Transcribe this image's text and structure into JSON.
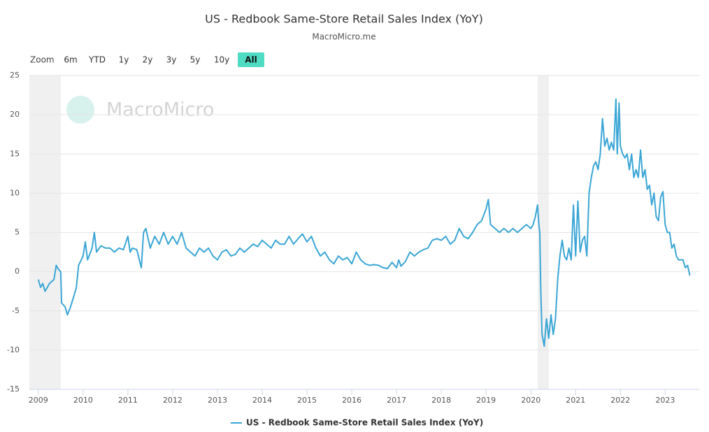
{
  "chart_data": {
    "type": "line",
    "title": "US - Redbook Same-Store Retail Sales Index (YoY)",
    "subtitle": "MacroMicro.me",
    "watermark": "MacroMicro",
    "range_selector": {
      "label": "Zoom",
      "buttons": [
        "6m",
        "YTD",
        "1y",
        "2y",
        "3y",
        "5y",
        "10y",
        "All"
      ],
      "selected": 7
    },
    "xlim": [
      2008.8,
      2023.76
    ],
    "xticks": [
      {
        "value": 2009,
        "label": "2009"
      },
      {
        "value": 2010,
        "label": "2010"
      },
      {
        "value": 2011,
        "label": "2011"
      },
      {
        "value": 2012,
        "label": "2012"
      },
      {
        "value": 2013,
        "label": "2013"
      },
      {
        "value": 2014,
        "label": "2014"
      },
      {
        "value": 2015,
        "label": "2015"
      },
      {
        "value": 2016,
        "label": "2016"
      },
      {
        "value": 2017,
        "label": "2017"
      },
      {
        "value": 2018,
        "label": "2018"
      },
      {
        "value": 2019,
        "label": "2019"
      },
      {
        "value": 2020,
        "label": "2020"
      },
      {
        "value": 2021,
        "label": "2021"
      },
      {
        "value": 2022,
        "label": "2022"
      },
      {
        "value": 2023,
        "label": "2023"
      }
    ],
    "ylim": [
      -15,
      25
    ],
    "yticks": [
      -15,
      -10,
      -5,
      0,
      5,
      10,
      15,
      20,
      25
    ],
    "grid": true,
    "shaded_ranges": [
      [
        2008.8,
        2009.5
      ],
      [
        2020.15,
        2020.4
      ]
    ],
    "legend": "bottom",
    "x": [
      2009.0,
      2009.05,
      2009.1,
      2009.15,
      2009.25,
      2009.35,
      2009.4,
      2009.45,
      2009.5,
      2009.52,
      2009.6,
      2009.65,
      2009.72,
      2009.8,
      2009.85,
      2009.9,
      2010.0,
      2010.05,
      2010.1,
      2010.2,
      2010.25,
      2010.3,
      2010.4,
      2010.5,
      2010.6,
      2010.7,
      2010.8,
      2010.9,
      2011.0,
      2011.05,
      2011.1,
      2011.2,
      2011.3,
      2011.35,
      2011.4,
      2011.5,
      2011.6,
      2011.7,
      2011.8,
      2011.9,
      2012.0,
      2012.1,
      2012.2,
      2012.3,
      2012.4,
      2012.5,
      2012.6,
      2012.7,
      2012.8,
      2012.9,
      2013.0,
      2013.1,
      2013.2,
      2013.3,
      2013.4,
      2013.5,
      2013.6,
      2013.7,
      2013.8,
      2013.9,
      2014.0,
      2014.1,
      2014.2,
      2014.3,
      2014.4,
      2014.5,
      2014.6,
      2014.7,
      2014.8,
      2014.9,
      2015.0,
      2015.1,
      2015.2,
      2015.3,
      2015.4,
      2015.5,
      2015.6,
      2015.7,
      2015.8,
      2015.9,
      2016.0,
      2016.1,
      2016.2,
      2016.3,
      2016.4,
      2016.5,
      2016.6,
      2016.7,
      2016.8,
      2016.9,
      2017.0,
      2017.05,
      2017.1,
      2017.2,
      2017.3,
      2017.4,
      2017.5,
      2017.6,
      2017.7,
      2017.8,
      2017.9,
      2018.0,
      2018.1,
      2018.2,
      2018.3,
      2018.4,
      2018.5,
      2018.6,
      2018.7,
      2018.8,
      2018.9,
      2019.0,
      2019.05,
      2019.1,
      2019.2,
      2019.3,
      2019.4,
      2019.5,
      2019.6,
      2019.7,
      2019.8,
      2019.9,
      2020.0,
      2020.05,
      2020.1,
      2020.15,
      2020.18,
      2020.2,
      2020.22,
      2020.25,
      2020.3,
      2020.35,
      2020.4,
      2020.45,
      2020.5,
      2020.55,
      2020.6,
      2020.65,
      2020.7,
      2020.75,
      2020.8,
      2020.85,
      2020.9,
      2020.95,
      2021.0,
      2021.05,
      2021.1,
      2021.15,
      2021.2,
      2021.25,
      2021.3,
      2021.35,
      2021.4,
      2021.45,
      2021.5,
      2021.55,
      2021.6,
      2021.65,
      2021.7,
      2021.75,
      2021.8,
      2021.85,
      2021.9,
      2021.93,
      2021.97,
      2022.0,
      2022.05,
      2022.1,
      2022.15,
      2022.2,
      2022.25,
      2022.3,
      2022.35,
      2022.4,
      2022.45,
      2022.5,
      2022.55,
      2022.6,
      2022.65,
      2022.7,
      2022.75,
      2022.8,
      2022.85,
      2022.9,
      2022.95,
      2023.0,
      2023.05,
      2023.1,
      2023.15,
      2023.2,
      2023.25,
      2023.3,
      2023.4,
      2023.45,
      2023.5,
      2023.55
    ],
    "series": [
      {
        "name": "US - Redbook Same-Store Retail Sales Index (YoY)",
        "color": "#3ba6d5",
        "values": [
          -1,
          -2,
          -1.5,
          -2.5,
          -1.5,
          -1,
          0.8,
          0.3,
          0,
          -4,
          -4.5,
          -5.5,
          -4.5,
          -3,
          -2,
          0.8,
          2,
          3.8,
          1.5,
          3,
          5,
          2.5,
          3.3,
          3,
          3,
          2.5,
          3,
          2.8,
          4.5,
          2.5,
          3,
          2.8,
          0.5,
          5,
          5.5,
          3,
          4.5,
          3.5,
          5,
          3.5,
          4.5,
          3.5,
          5,
          3,
          2.5,
          2,
          3,
          2.5,
          3,
          2,
          1.5,
          2.5,
          2.8,
          2,
          2.2,
          3,
          2.5,
          3,
          3.5,
          3.2,
          4,
          3.5,
          3,
          4,
          3.5,
          3.5,
          4.5,
          3.5,
          4.2,
          4.8,
          3.8,
          4.5,
          3,
          2,
          2.5,
          1.5,
          1,
          2,
          1.5,
          1.8,
          1,
          2.5,
          1.5,
          1,
          0.8,
          0.9,
          0.8,
          0.5,
          0.4,
          1.2,
          0.5,
          1.5,
          0.7,
          1.3,
          2.5,
          2,
          2.5,
          2.8,
          3,
          4,
          4.2,
          4,
          4.5,
          3.5,
          4,
          5.5,
          4.5,
          4.2,
          5,
          6,
          6.5,
          8,
          9.2,
          6,
          5.5,
          5,
          5.5,
          5,
          5.5,
          5,
          5.5,
          6,
          5.5,
          6,
          7,
          8.5,
          6,
          5,
          -2,
          -8,
          -9.5,
          -6,
          -8.5,
          -5.5,
          -8,
          -6,
          -1,
          2,
          4,
          2,
          1.5,
          3,
          1.5,
          8.5,
          2,
          9,
          2.5,
          4,
          4.5,
          2,
          10,
          12,
          13.5,
          14,
          13,
          15,
          19.5,
          16,
          17,
          15.5,
          16.5,
          15.5,
          22,
          15,
          21.5,
          16,
          15,
          14.5,
          15,
          13,
          15,
          12,
          13,
          12,
          15.5,
          12,
          13,
          10.5,
          11,
          8.5,
          10,
          7,
          6.5,
          9.5,
          10.2,
          6,
          5,
          5,
          3,
          3.5,
          2,
          1.5,
          1.5,
          0.5,
          0.8,
          -0.5
        ]
      }
    ]
  }
}
